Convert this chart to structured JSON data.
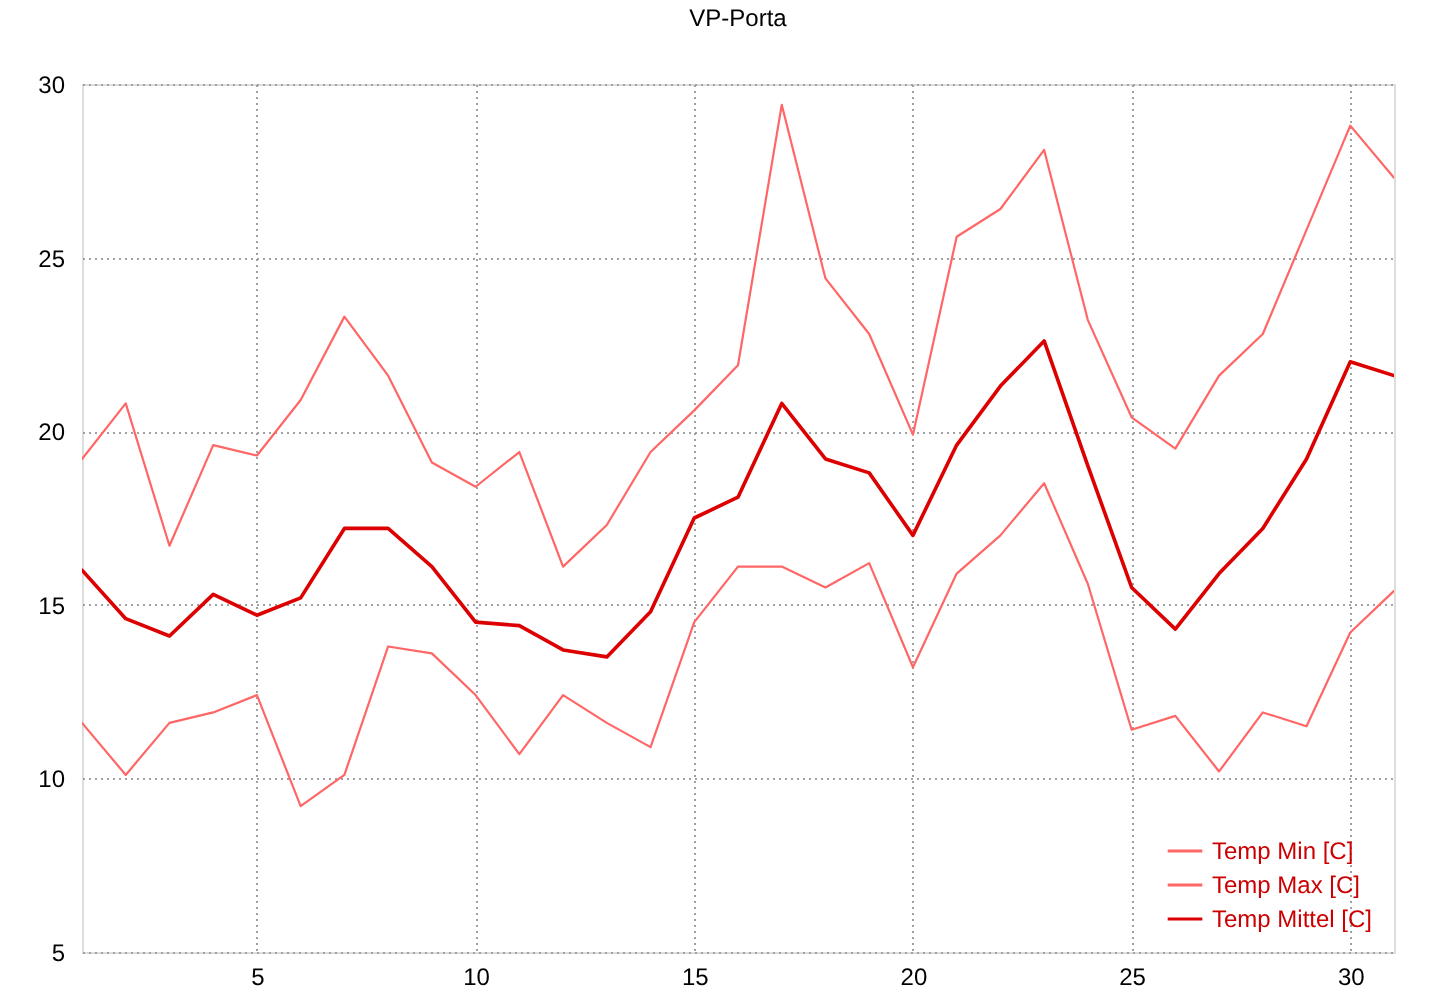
{
  "chart_data": {
    "type": "line",
    "title": "VP-Porta",
    "x": [
      1,
      2,
      3,
      4,
      5,
      6,
      7,
      8,
      9,
      10,
      11,
      12,
      13,
      14,
      15,
      16,
      17,
      18,
      19,
      20,
      21,
      22,
      23,
      24,
      25,
      26,
      27,
      28,
      29,
      30,
      31
    ],
    "series": [
      {
        "name": "Temp Min [C]",
        "color": "#ff6666",
        "values": [
          11.6,
          10.1,
          11.6,
          11.9,
          12.4,
          9.2,
          10.1,
          13.8,
          13.6,
          12.4,
          10.7,
          12.4,
          11.6,
          10.9,
          14.5,
          16.1,
          16.1,
          15.5,
          16.2,
          13.2,
          15.9,
          17.0,
          18.5,
          15.6,
          11.4,
          11.8,
          10.2,
          11.9,
          11.5,
          14.2,
          15.4
        ]
      },
      {
        "name": "Temp Max [C]",
        "color": "#ff6666",
        "values": [
          19.2,
          20.8,
          16.7,
          19.6,
          19.3,
          20.9,
          23.3,
          21.6,
          19.1,
          18.4,
          19.4,
          16.1,
          17.3,
          19.4,
          20.6,
          21.9,
          29.4,
          24.4,
          22.8,
          19.9,
          25.6,
          26.4,
          28.1,
          23.2,
          20.4,
          19.5,
          21.6,
          22.8,
          25.8,
          28.8,
          27.3
        ]
      },
      {
        "name": "Temp Mittel [C]",
        "color": "#dd0000",
        "values": [
          16.0,
          14.6,
          14.1,
          15.3,
          14.7,
          15.2,
          17.2,
          17.2,
          16.1,
          14.5,
          14.4,
          13.7,
          13.5,
          14.8,
          17.5,
          18.1,
          20.8,
          19.2,
          18.8,
          17.0,
          19.6,
          21.3,
          22.6,
          19.0,
          15.5,
          14.3,
          15.9,
          17.2,
          19.2,
          22.0,
          21.6
        ]
      }
    ],
    "xlim": [
      1,
      31
    ],
    "xticks": [
      5,
      10,
      15,
      20,
      25,
      30
    ],
    "ylim": [
      5,
      30
    ],
    "yticks": [
      5,
      10,
      15,
      20,
      25,
      30
    ],
    "grid": true,
    "legend": "bottom right",
    "marker": "none",
    "line_style": "solid"
  }
}
